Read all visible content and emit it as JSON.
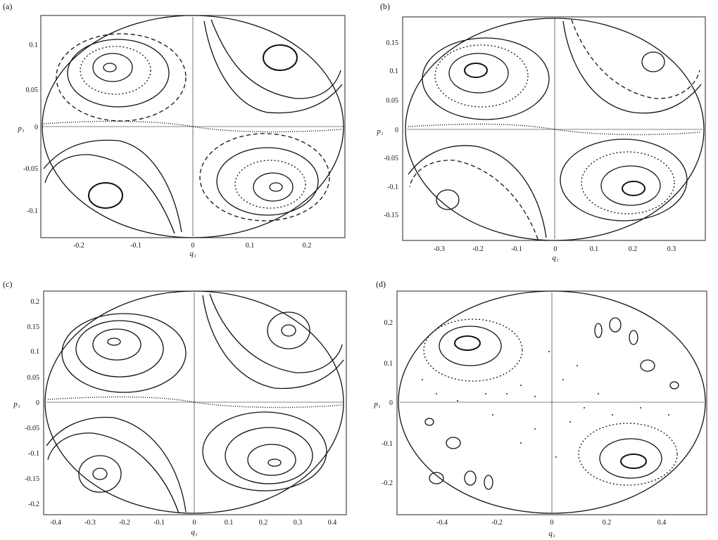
{
  "figure": {
    "panels": [
      {
        "label": "(a)",
        "x_axis_label": "q₁",
        "y_axis_label": "p₁",
        "x_ticks": [
          "-0.2",
          "-0.1",
          "0",
          "0.1",
          "0.2"
        ],
        "y_ticks": [
          "0.1",
          "0.05",
          "0",
          "-0.05",
          "-0.1"
        ]
      },
      {
        "label": "(b)",
        "x_axis_label": "q₁",
        "y_axis_label": "p₁",
        "x_ticks": [
          "-0.3",
          "-0.2",
          "-0.1",
          "0",
          "0.1",
          "0.2",
          "0.3"
        ],
        "y_ticks": [
          "0.15",
          "0.1",
          "0.05",
          "0",
          "-0.05",
          "-0.1",
          "-0.15"
        ]
      },
      {
        "label": "(c)",
        "x_axis_label": "q₁",
        "y_axis_label": "p₁",
        "x_ticks": [
          "-0.4",
          "-0.3",
          "-0.2",
          "-0.1",
          "0",
          "0.1",
          "0.2",
          "0.3",
          "0.4"
        ],
        "y_ticks": [
          "0.2",
          "0.15",
          "0.1",
          "0.05",
          "0",
          "-0.05",
          "-0.1",
          "-0.15",
          "-0.2"
        ]
      },
      {
        "label": "(d)",
        "x_axis_label": "q₁",
        "y_axis_label": "p₁",
        "x_ticks": [
          "-0.4",
          "-0.2",
          "0",
          "0.2",
          "0.4"
        ],
        "y_ticks": [
          "0.2",
          "0.1",
          "0",
          "-0.1",
          "-0.2"
        ]
      }
    ]
  }
}
